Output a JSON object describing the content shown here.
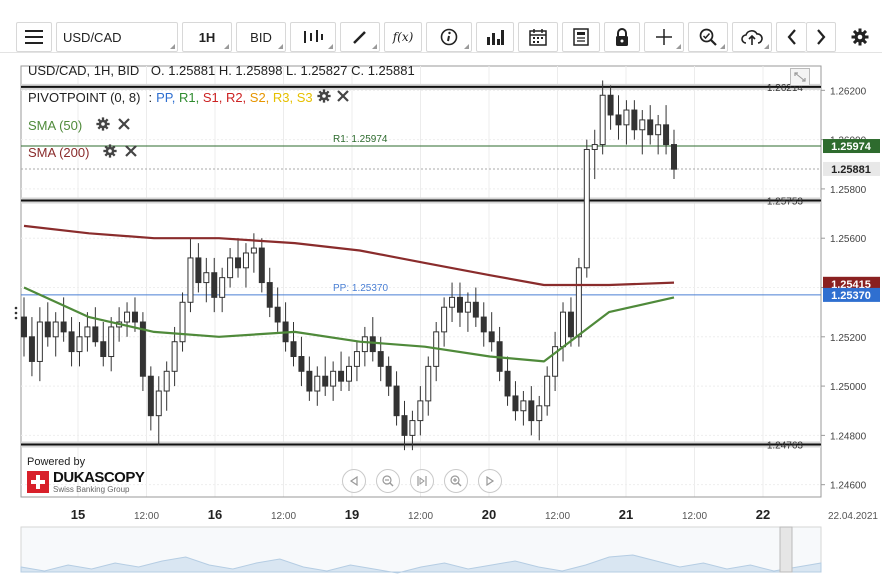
{
  "toolbar": {
    "symbol": "USD/CAD",
    "timeframe": "1H",
    "price_side": "BID",
    "fx_label": "f(x)"
  },
  "header": {
    "instrument": "USD/CAD, 1H, BID",
    "ohlc": "O. 1.25881 H. 1.25898 L. 1.25827 C. 1.25881"
  },
  "indicators": {
    "pivot": {
      "name": "PIVOTPOINT (0, 8)",
      "sep": ":",
      "levels": [
        {
          "label": "PP",
          "color": "#2f6fd0"
        },
        {
          "label": "R1",
          "color": "#2e8b2e"
        },
        {
          "label": "S1",
          "color": "#cc2222"
        },
        {
          "label": "R2",
          "color": "#cc2222"
        },
        {
          "label": "S2",
          "color": "#e69500"
        },
        {
          "label": "R3",
          "color": "#e6c000"
        },
        {
          "label": "S3",
          "color": "#e6c000"
        }
      ]
    },
    "sma50": {
      "label": "SMA (50)",
      "color": "#4f8a3a"
    },
    "sma200": {
      "label": "SMA (200)",
      "color": "#8a2c2c"
    }
  },
  "branding": {
    "powered_by": "Powered by",
    "logo": "DUKASCOPY",
    "tagline": "Swiss Banking Group"
  },
  "date_label": "22.04.2021",
  "chart_data": {
    "type": "candlestick",
    "timeframe": "1H",
    "ylim": [
      1.2455,
      1.2625
    ],
    "y_ticks": [
      {
        "value": 1.262,
        "label": "1.26200"
      },
      {
        "value": 1.26,
        "label": "1.26000"
      },
      {
        "value": 1.258,
        "label": "1.25800"
      },
      {
        "value": 1.256,
        "label": "1.25600"
      },
      {
        "value": 1.254,
        "label": "1.25400"
      },
      {
        "value": 1.252,
        "label": "1.25200"
      },
      {
        "value": 1.25,
        "label": "1.25000"
      },
      {
        "value": 1.248,
        "label": "1.24800"
      },
      {
        "value": 1.246,
        "label": "1.24600"
      }
    ],
    "x_ticks": [
      "15",
      "12:00",
      "16",
      "12:00",
      "19",
      "12:00",
      "20",
      "12:00",
      "21",
      "12:00",
      "22"
    ],
    "candles": [
      [
        1.2528,
        1.2536,
        1.2512,
        1.252
      ],
      [
        1.252,
        1.2528,
        1.2504,
        1.251
      ],
      [
        1.251,
        1.2532,
        1.2502,
        1.2526
      ],
      [
        1.2526,
        1.2534,
        1.2516,
        1.252
      ],
      [
        1.252,
        1.253,
        1.2512,
        1.2526
      ],
      [
        1.2526,
        1.2536,
        1.2518,
        1.2522
      ],
      [
        1.2522,
        1.2528,
        1.2508,
        1.2514
      ],
      [
        1.2514,
        1.2526,
        1.2508,
        1.252
      ],
      [
        1.252,
        1.253,
        1.2514,
        1.2524
      ],
      [
        1.2524,
        1.2532,
        1.2516,
        1.2518
      ],
      [
        1.2518,
        1.2526,
        1.2508,
        1.2512
      ],
      [
        1.2512,
        1.2528,
        1.2506,
        1.2524
      ],
      [
        1.2524,
        1.2532,
        1.2518,
        1.2526
      ],
      [
        1.2526,
        1.2534,
        1.252,
        1.253
      ],
      [
        1.253,
        1.2536,
        1.2522,
        1.2526
      ],
      [
        1.2526,
        1.253,
        1.2498,
        1.2504
      ],
      [
        1.2504,
        1.2508,
        1.2482,
        1.2488
      ],
      [
        1.2488,
        1.2504,
        1.2476,
        1.2498
      ],
      [
        1.2498,
        1.251,
        1.249,
        1.2506
      ],
      [
        1.2506,
        1.2524,
        1.25,
        1.2518
      ],
      [
        1.2518,
        1.2538,
        1.2514,
        1.2534
      ],
      [
        1.2534,
        1.256,
        1.253,
        1.2552
      ],
      [
        1.2552,
        1.2558,
        1.2538,
        1.2542
      ],
      [
        1.2542,
        1.2552,
        1.2534,
        1.2546
      ],
      [
        1.2546,
        1.2552,
        1.253,
        1.2536
      ],
      [
        1.2536,
        1.2548,
        1.253,
        1.2544
      ],
      [
        1.2544,
        1.2556,
        1.254,
        1.2552
      ],
      [
        1.2552,
        1.256,
        1.2544,
        1.2548
      ],
      [
        1.2548,
        1.2558,
        1.254,
        1.2554
      ],
      [
        1.2554,
        1.2562,
        1.2546,
        1.2556
      ],
      [
        1.2556,
        1.256,
        1.2538,
        1.2542
      ],
      [
        1.2542,
        1.2548,
        1.2528,
        1.2532
      ],
      [
        1.2532,
        1.254,
        1.2522,
        1.2526
      ],
      [
        1.2526,
        1.2534,
        1.2514,
        1.2518
      ],
      [
        1.2518,
        1.2526,
        1.2508,
        1.2512
      ],
      [
        1.2512,
        1.252,
        1.25,
        1.2506
      ],
      [
        1.2506,
        1.2512,
        1.2494,
        1.2498
      ],
      [
        1.2498,
        1.2508,
        1.2492,
        1.2504
      ],
      [
        1.2504,
        1.2512,
        1.2496,
        1.25
      ],
      [
        1.25,
        1.251,
        1.2494,
        1.2506
      ],
      [
        1.2506,
        1.2514,
        1.2498,
        1.2502
      ],
      [
        1.2502,
        1.2512,
        1.2498,
        1.2508
      ],
      [
        1.2508,
        1.2518,
        1.2502,
        1.2514
      ],
      [
        1.2514,
        1.2524,
        1.2508,
        1.252
      ],
      [
        1.252,
        1.2528,
        1.251,
        1.2514
      ],
      [
        1.2514,
        1.252,
        1.2502,
        1.2508
      ],
      [
        1.2508,
        1.2512,
        1.2496,
        1.25
      ],
      [
        1.25,
        1.2506,
        1.2484,
        1.2488
      ],
      [
        1.2488,
        1.2494,
        1.2474,
        1.248
      ],
      [
        1.248,
        1.249,
        1.2474,
        1.2486
      ],
      [
        1.2486,
        1.25,
        1.248,
        1.2494
      ],
      [
        1.2494,
        1.2512,
        1.2488,
        1.2508
      ],
      [
        1.2508,
        1.2526,
        1.2502,
        1.2522
      ],
      [
        1.2522,
        1.2536,
        1.2516,
        1.2532
      ],
      [
        1.2532,
        1.2542,
        1.2526,
        1.2536
      ],
      [
        1.2536,
        1.2542,
        1.2524,
        1.253
      ],
      [
        1.253,
        1.2538,
        1.2522,
        1.2534
      ],
      [
        1.2534,
        1.254,
        1.2524,
        1.2528
      ],
      [
        1.2528,
        1.2534,
        1.2516,
        1.2522
      ],
      [
        1.2522,
        1.253,
        1.2514,
        1.2518
      ],
      [
        1.2518,
        1.2524,
        1.2502,
        1.2506
      ],
      [
        1.2506,
        1.2512,
        1.2492,
        1.2496
      ],
      [
        1.2496,
        1.2502,
        1.2486,
        1.249
      ],
      [
        1.249,
        1.2498,
        1.2484,
        1.2494
      ],
      [
        1.2494,
        1.25,
        1.248,
        1.2486
      ],
      [
        1.2486,
        1.2496,
        1.2478,
        1.2492
      ],
      [
        1.2492,
        1.2508,
        1.2488,
        1.2504
      ],
      [
        1.2504,
        1.2522,
        1.2498,
        1.2516
      ],
      [
        1.2516,
        1.2534,
        1.251,
        1.253
      ],
      [
        1.253,
        1.2536,
        1.2516,
        1.252
      ],
      [
        1.252,
        1.2552,
        1.2516,
        1.2548
      ],
      [
        1.2548,
        1.26,
        1.2544,
        1.2596
      ],
      [
        1.2596,
        1.2604,
        1.2584,
        1.2598
      ],
      [
        1.2598,
        1.2624,
        1.2594,
        1.2618
      ],
      [
        1.2618,
        1.2622,
        1.2604,
        1.261
      ],
      [
        1.261,
        1.2618,
        1.26,
        1.2606
      ],
      [
        1.2606,
        1.2616,
        1.2598,
        1.2612
      ],
      [
        1.2612,
        1.2616,
        1.26,
        1.2604
      ],
      [
        1.2604,
        1.2612,
        1.2594,
        1.2608
      ],
      [
        1.2608,
        1.2614,
        1.2598,
        1.2602
      ],
      [
        1.2602,
        1.261,
        1.2594,
        1.2606
      ],
      [
        1.2606,
        1.2614,
        1.2594,
        1.2598
      ],
      [
        1.2598,
        1.2604,
        1.2584,
        1.2588
      ]
    ],
    "sma50": [
      [
        0,
        1.254
      ],
      [
        12,
        1.2528
      ],
      [
        24,
        1.2522
      ],
      [
        36,
        1.252
      ],
      [
        50,
        1.2522
      ],
      [
        62,
        1.2518
      ],
      [
        74,
        1.2516
      ],
      [
        86,
        1.2512
      ],
      [
        96,
        1.251
      ],
      [
        108,
        1.253
      ],
      [
        120,
        1.2536
      ]
    ],
    "sma200": [
      [
        0,
        1.2565
      ],
      [
        12,
        1.2562
      ],
      [
        24,
        1.256
      ],
      [
        36,
        1.256
      ],
      [
        50,
        1.2558
      ],
      [
        62,
        1.2555
      ],
      [
        74,
        1.255
      ],
      [
        86,
        1.2545
      ],
      [
        96,
        1.2541
      ],
      [
        108,
        1.2541
      ],
      [
        120,
        1.2542
      ]
    ],
    "pivots": [
      {
        "label": "PP: 1.25370",
        "value": 1.2537,
        "color": "#4a7fd4"
      },
      {
        "label": "R1: 1.25974",
        "value": 1.25974,
        "color": "#2e6b2e"
      }
    ],
    "hlines": [
      {
        "label": "1.26214",
        "value": 1.26214
      },
      {
        "label": "1.25753",
        "value": 1.25753
      },
      {
        "label": "1.24763",
        "value": 1.24763
      }
    ],
    "price_tags": [
      {
        "label": "1.25974",
        "value": 1.25974,
        "bg": "#2e6b2e",
        "fg": "#ffffff"
      },
      {
        "label": "1.25881",
        "value": 1.25881,
        "bg": "#e8e8e8",
        "fg": "#222222"
      },
      {
        "label": "1.25415",
        "value": 1.25415,
        "bg": "#8a2020",
        "fg": "#ffffff"
      },
      {
        "label": "1.25370",
        "value": 1.2537,
        "bg": "#2f6fd0",
        "fg": "#ffffff"
      }
    ],
    "current_price": 1.25881
  }
}
